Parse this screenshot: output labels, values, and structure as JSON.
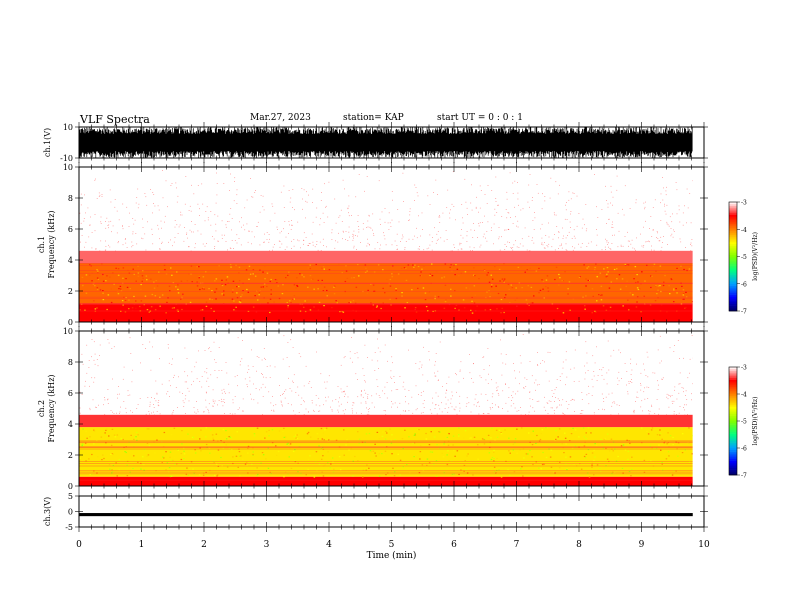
{
  "header": {
    "title": "VLF Spectra",
    "date": "Mar.27, 2023",
    "station": "station= KAP",
    "start": "start  UT =   0 : 0  : 1"
  },
  "colorbar": {
    "label": "log(PSD)(V²/Hz)",
    "ticks": [
      "-3",
      "-4",
      "-5",
      "-6",
      "-7"
    ],
    "colors": [
      "#000060",
      "#0000ff",
      "#00a0ff",
      "#00ff80",
      "#80ff00",
      "#ffff00",
      "#ff8000",
      "#ff0000",
      "#ffffff"
    ]
  },
  "chart_data": [
    {
      "type": "line",
      "title": "VLF Spectra",
      "ylabel": "ch.1(V)",
      "ylim": [
        -10,
        10
      ],
      "y_ticks": [
        "10",
        "-10"
      ],
      "description_of_signal": "dense broadband waveform saturating between -10 and 10 V",
      "xlim": [
        0,
        10
      ]
    },
    {
      "type": "heatmap",
      "ylabel": "ch.1\nFrequency (kHz)",
      "ylim": [
        0,
        10
      ],
      "y_ticks": [
        "0",
        "2",
        "4",
        "6",
        "8",
        "10"
      ],
      "xlim": [
        0,
        10
      ],
      "color_range": [
        -7,
        -3
      ],
      "bands": [
        {
          "freq_kHz": [
            0.0,
            1.2
          ],
          "level": -3.5
        },
        {
          "freq_kHz": [
            1.2,
            3.8
          ],
          "level": -3.9
        },
        {
          "freq_kHz": [
            3.8,
            4.6
          ],
          "level": -3.3
        },
        {
          "freq_kHz": [
            4.6,
            10.0
          ],
          "level": -3.0
        }
      ]
    },
    {
      "type": "heatmap",
      "ylabel": "ch.2\nFrequency (kHz)",
      "ylim": [
        0,
        10
      ],
      "y_ticks": [
        "0",
        "2",
        "4",
        "6",
        "8",
        "10"
      ],
      "xlim": [
        0,
        10
      ],
      "color_range": [
        -7,
        -3
      ],
      "bands": [
        {
          "freq_kHz": [
            0.0,
            0.6
          ],
          "level": -3.5
        },
        {
          "freq_kHz": [
            0.6,
            3.8
          ],
          "level": -4.4
        },
        {
          "freq_kHz": [
            3.8,
            4.6
          ],
          "level": -3.4
        },
        {
          "freq_kHz": [
            4.6,
            10.0
          ],
          "level": -3.0
        }
      ]
    },
    {
      "type": "line",
      "ylabel": "ch.3(V)",
      "ylim": [
        -5,
        5
      ],
      "y_ticks": [
        "5",
        "0",
        "-5"
      ],
      "description_of_signal": "narrow constant band near -1 V",
      "xlim": [
        0,
        10
      ],
      "xlabel": "Time (min)",
      "x_ticks": [
        "0",
        "1",
        "2",
        "3",
        "4",
        "5",
        "6",
        "7",
        "8",
        "9",
        "10"
      ],
      "data_end_min": 9.82
    }
  ]
}
